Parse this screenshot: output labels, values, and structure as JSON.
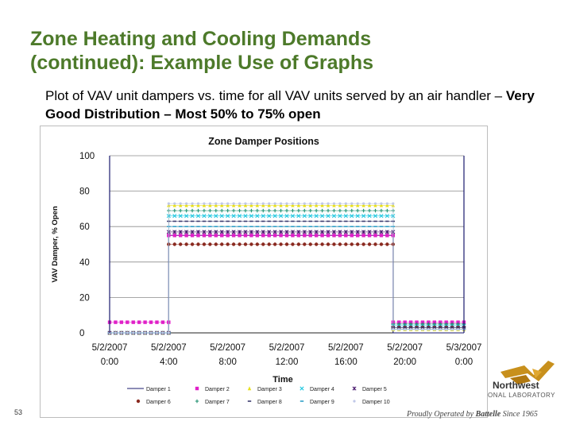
{
  "slide": {
    "title_line1": "Zone Heating and Cooling Demands",
    "title_line2": "(continued):  Example Use of Graphs",
    "subtitle_plain": "Plot of VAV unit dampers vs. time for all VAV units served by an air handler – ",
    "subtitle_bold": "Very Good Distribution – Most 50% to 75% open",
    "page_number": "53",
    "logo_line1": "Northwest",
    "logo_line2": "ONAL LABORATORY",
    "footer_prefix": "Proudly Operated by ",
    "footer_bold": "Battelle",
    "footer_suffix": " Since 1965"
  },
  "colors": {
    "title": "#4d7a2a",
    "logo_gold": "#c8901c"
  },
  "chart_data": {
    "type": "line",
    "title": "Zone Damper Positions",
    "xlabel": "Time",
    "ylabel": "VAV Damper, % Open",
    "ylim": [
      0,
      100
    ],
    "yticks": [
      "0",
      "20",
      "40",
      "60",
      "80",
      "100"
    ],
    "xticks": [
      {
        "date": "5/2/2007",
        "time": "0:00"
      },
      {
        "date": "5/2/2007",
        "time": "4:00"
      },
      {
        "date": "5/2/2007",
        "time": "8:00"
      },
      {
        "date": "5/2/2007",
        "time": "12:00"
      },
      {
        "date": "5/2/2007",
        "time": "16:00"
      },
      {
        "date": "5/2/2007",
        "time": "20:00"
      },
      {
        "date": "5/3/2007",
        "time": "0:00"
      }
    ],
    "xlim_hours": [
      0,
      24
    ],
    "grid": "horizontal",
    "legend_position": "bottom",
    "spike_hours": [
      0,
      24
    ],
    "series": [
      {
        "name": "Damper 1",
        "color": "#1a1a6e",
        "marker": "line",
        "segments": [
          [
            0,
            4,
            0
          ],
          [
            4,
            19.2,
            55
          ],
          [
            19.2,
            24,
            0
          ]
        ]
      },
      {
        "name": "Damper 2",
        "color": "#e020c8",
        "marker": "square",
        "segments": [
          [
            0,
            4,
            6
          ],
          [
            4,
            19.2,
            55
          ],
          [
            19.2,
            24,
            6
          ]
        ]
      },
      {
        "name": "Damper 3",
        "color": "#e8e020",
        "marker": "triangle",
        "segments": [
          [
            0,
            4,
            0
          ],
          [
            4,
            19.2,
            72
          ],
          [
            19.2,
            24,
            2
          ]
        ]
      },
      {
        "name": "Damper 4",
        "color": "#20c8e0",
        "marker": "x",
        "segments": [
          [
            0,
            4,
            0
          ],
          [
            4,
            19.2,
            66
          ],
          [
            19.2,
            24,
            4
          ]
        ]
      },
      {
        "name": "Damper 5",
        "color": "#4a1a6e",
        "marker": "asterisk",
        "segments": [
          [
            0,
            4,
            0
          ],
          [
            4,
            19.2,
            57
          ],
          [
            19.2,
            24,
            3
          ]
        ]
      },
      {
        "name": "Damper 6",
        "color": "#8a2a20",
        "marker": "circle",
        "segments": [
          [
            0,
            4,
            0
          ],
          [
            4,
            19.2,
            50
          ],
          [
            19.2,
            24,
            3
          ]
        ]
      },
      {
        "name": "Damper 7",
        "color": "#209070",
        "marker": "plus",
        "segments": [
          [
            0,
            4,
            0
          ],
          [
            4,
            19.2,
            69
          ],
          [
            19.2,
            24,
            5
          ]
        ]
      },
      {
        "name": "Damper 8",
        "color": "#3a3a6e",
        "marker": "dash",
        "segments": [
          [
            0,
            4,
            0
          ],
          [
            4,
            19.2,
            63
          ],
          [
            19.2,
            24,
            3
          ]
        ]
      },
      {
        "name": "Damper 9",
        "color": "#30a0c8",
        "marker": "dash",
        "segments": [
          [
            0,
            4,
            0
          ],
          [
            4,
            19.2,
            60
          ],
          [
            19.2,
            24,
            2
          ]
        ]
      },
      {
        "name": "Damper 10",
        "color": "#c0c8e8",
        "marker": "dot",
        "segments": [
          [
            0,
            4,
            0
          ],
          [
            4,
            19.2,
            73
          ],
          [
            19.2,
            24,
            2
          ]
        ]
      }
    ]
  }
}
